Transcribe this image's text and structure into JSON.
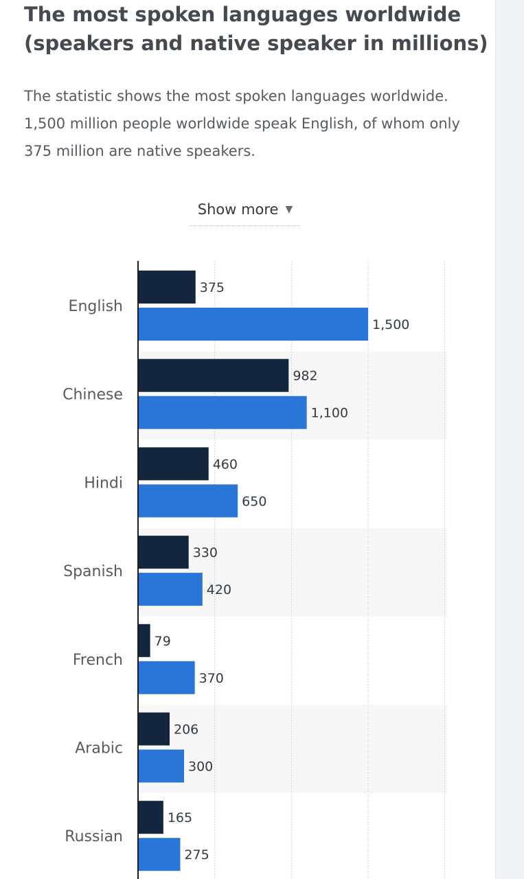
{
  "page": {
    "title_line1": "The most spoken languages worldwide",
    "title_line2": "(speakers and native speaker in millions)",
    "description_line1": "The statistic shows the most spoken languages worldwide.",
    "description_line2": "1,500 million people worldwide speak English, of whom only",
    "description_line3": "375 million are native speakers.",
    "show_more_label": "Show more",
    "show_more_icon": "caret-down-icon"
  },
  "chart_data": {
    "type": "bar",
    "orientation": "horizontal",
    "categories": [
      "English",
      "Chinese",
      "Hindi",
      "Spanish",
      "French",
      "Arabic",
      "Russian"
    ],
    "series": [
      {
        "color": "#13263d",
        "values": [
          375,
          982,
          460,
          330,
          79,
          206,
          165
        ],
        "labels": [
          "375",
          "982",
          "460",
          "330",
          "79",
          "206",
          "165"
        ]
      },
      {
        "color": "#2a75d8",
        "values": [
          1500,
          1100,
          650,
          420,
          370,
          300,
          275
        ],
        "labels": [
          "1,500",
          "1,100",
          "650",
          "420",
          "370",
          "300",
          "275"
        ]
      }
    ],
    "xlim": [
      0,
      2000
    ],
    "grid": true,
    "grid_step": 500,
    "alternating_band_color": "#f7f7f7",
    "legend": "none"
  }
}
